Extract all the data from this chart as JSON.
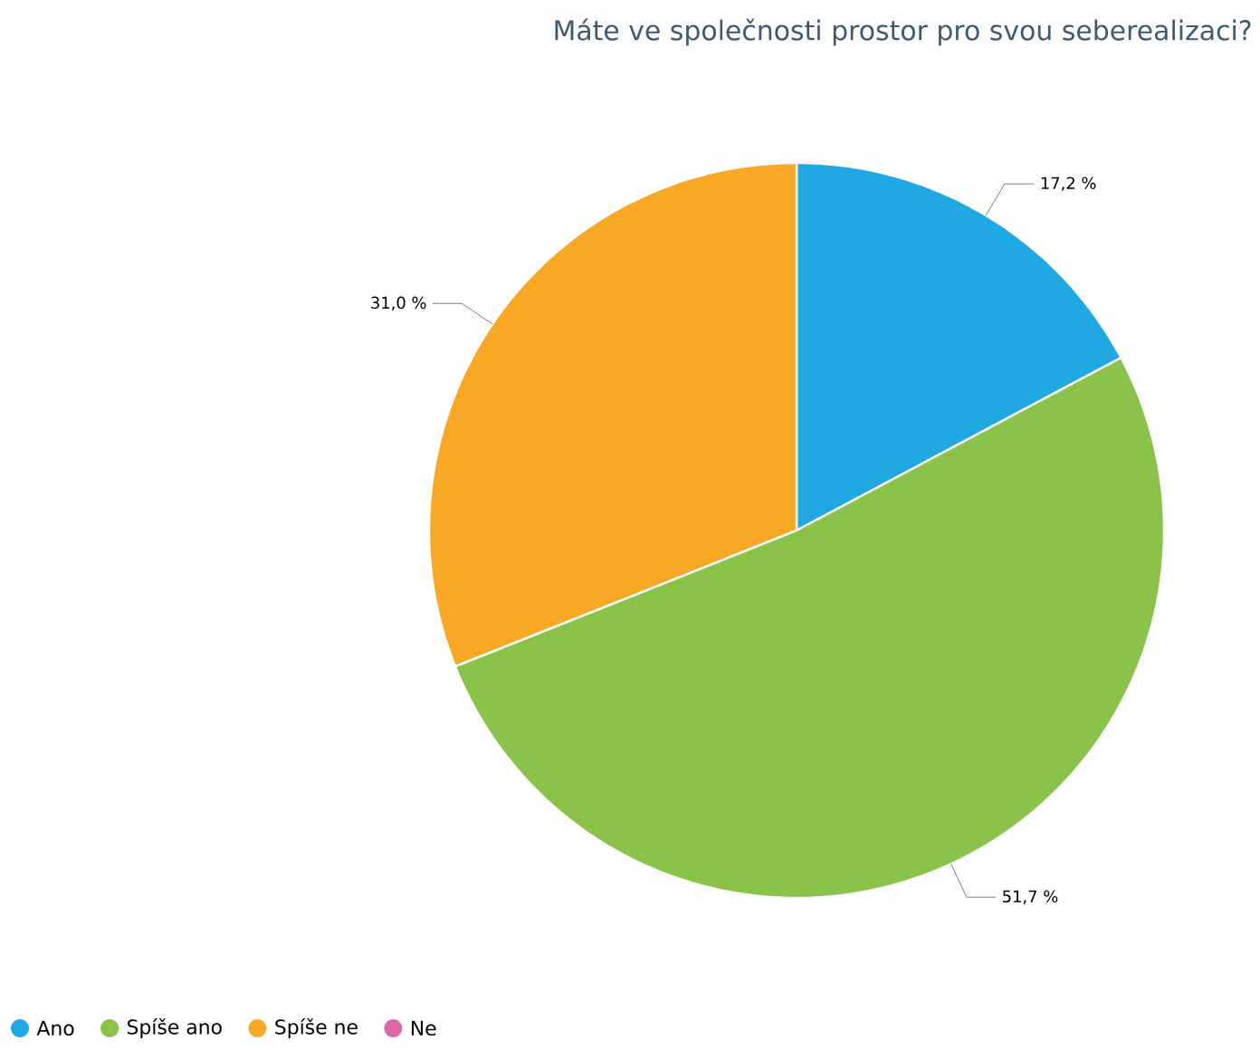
{
  "chart_data": {
    "type": "pie",
    "title": "Máte ve společnosti prostor pro svou seberealizaci?",
    "categories": [
      "Ano",
      "Spíše ano",
      "Spíše ne",
      "Ne"
    ],
    "values": [
      17.2,
      51.7,
      31.0,
      0
    ],
    "value_labels": [
      "17,2 %",
      "51,7 %",
      "31,0 %",
      null
    ],
    "colors": [
      "#1fa8e1",
      "#8bc34a",
      "#f9a825",
      "#e066a8"
    ],
    "legend": "bottom left"
  }
}
